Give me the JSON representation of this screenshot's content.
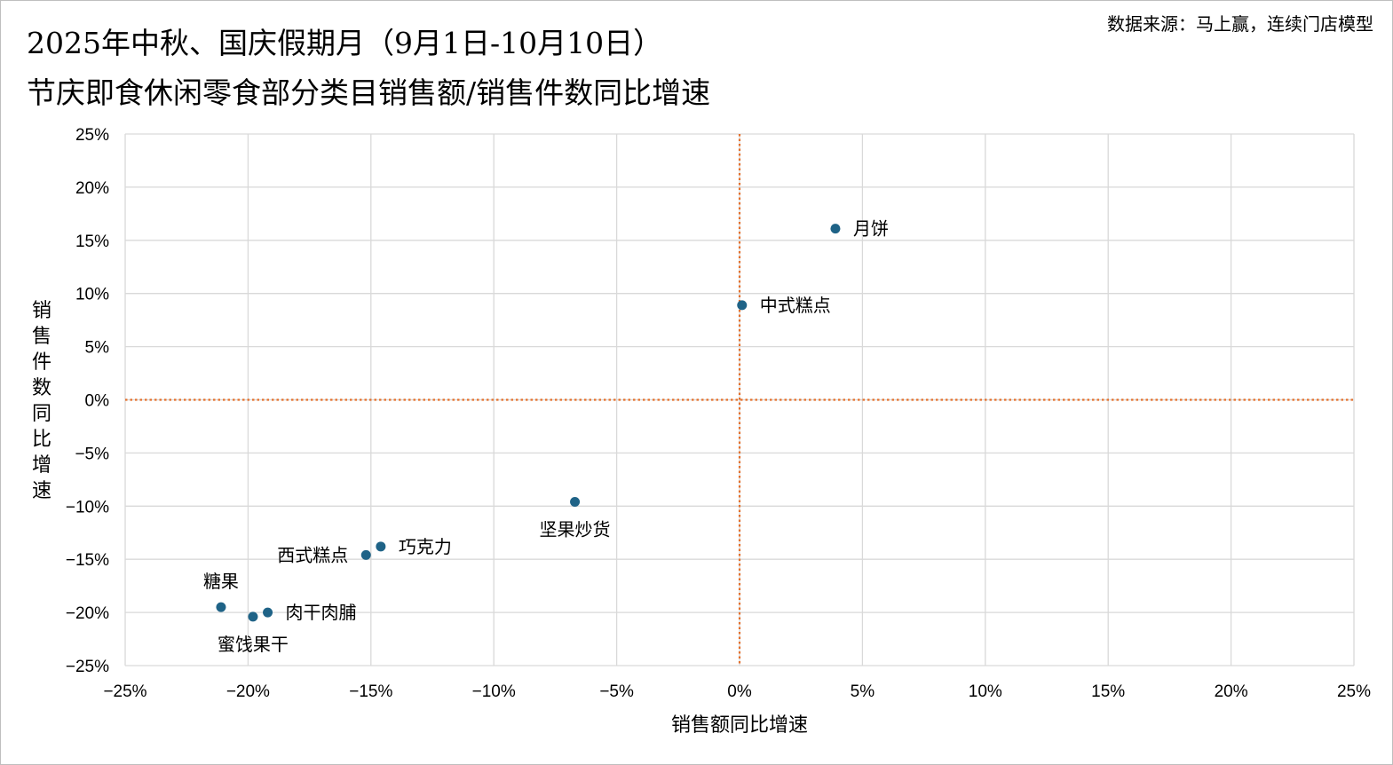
{
  "title_line1": "2025年中秋、国庆假期月（9月1日-10月10日）",
  "title_line2": "节庆即食休闲零食部分类目销售额/销售件数同比增速",
  "source": "数据来源：马上赢，连续门店模型",
  "chart_data": {
    "type": "scatter",
    "xlabel": "销售额同比增速",
    "ylabel": "销售件数同比增速",
    "xlim": [
      -25,
      25
    ],
    "ylim": [
      -25,
      25
    ],
    "x_ticks": [
      -25,
      -20,
      -15,
      -10,
      -5,
      0,
      5,
      10,
      15,
      20,
      25
    ],
    "y_ticks": [
      -25,
      -20,
      -15,
      -10,
      -5,
      0,
      5,
      10,
      15,
      20,
      25
    ],
    "x_tick_labels": [
      "−25%",
      "−20%",
      "−15%",
      "−10%",
      "−5%",
      "0%",
      "5%",
      "10%",
      "15%",
      "20%",
      "25%"
    ],
    "y_tick_labels": [
      "−25%",
      "−20%",
      "−15%",
      "−10%",
      "−5%",
      "0%",
      "5%",
      "10%",
      "15%",
      "20%",
      "25%"
    ],
    "grid": true,
    "reference_lines": {
      "x": 0,
      "y": 0,
      "style": "dotted",
      "color": "#E4702C"
    },
    "marker_color": "#1F6387",
    "grid_color": "#D9D9D9",
    "points": [
      {
        "label": "月饼",
        "x": 3.9,
        "y": 16.1,
        "label_pos": "right"
      },
      {
        "label": "中式糕点",
        "x": 0.1,
        "y": 8.9,
        "label_pos": "right"
      },
      {
        "label": "坚果炒货",
        "x": -6.7,
        "y": -9.6,
        "label_pos": "below"
      },
      {
        "label": "巧克力",
        "x": -14.6,
        "y": -13.8,
        "label_pos": "right"
      },
      {
        "label": "西式糕点",
        "x": -15.2,
        "y": -14.6,
        "label_pos": "left"
      },
      {
        "label": "糖果",
        "x": -21.1,
        "y": -19.5,
        "label_pos": "above"
      },
      {
        "label": "肉干肉脯",
        "x": -19.2,
        "y": -20.0,
        "label_pos": "right"
      },
      {
        "label": "蜜饯果干",
        "x": -19.8,
        "y": -20.4,
        "label_pos": "below"
      }
    ]
  }
}
